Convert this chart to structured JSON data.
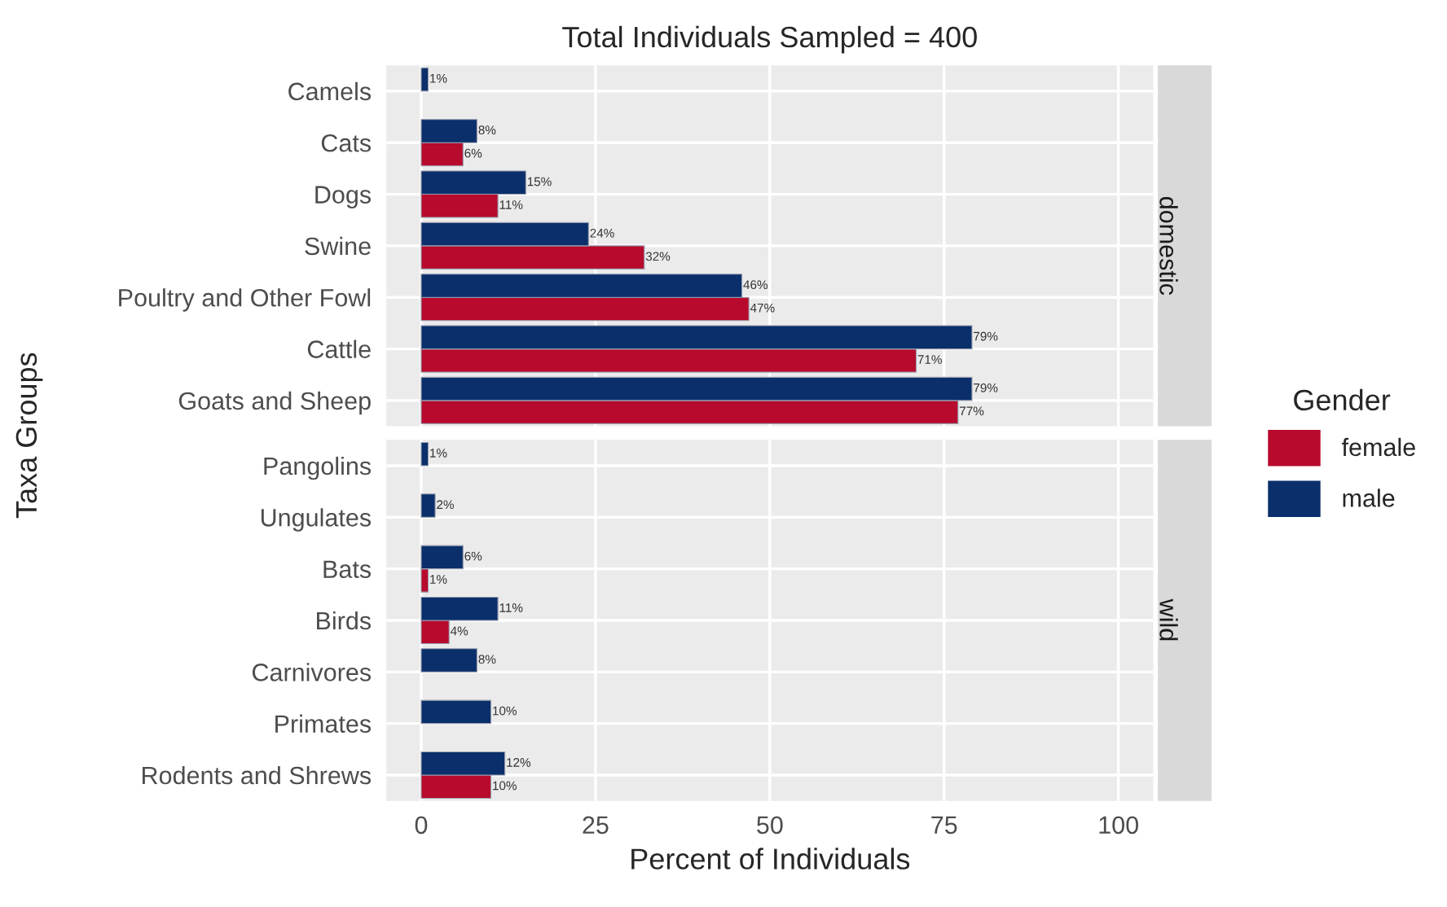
{
  "chart_data": [
    {
      "type": "bar",
      "orientation": "horizontal",
      "title": "Total Individuals Sampled = 400",
      "subtitle": "domestic",
      "ylabel": "Taxa Groups",
      "legend_title": "Gender",
      "legend": "right",
      "grid": true,
      "tick_labels": "y",
      "xlim": [
        -5,
        105
      ],
      "xticks": [
        0,
        25,
        50,
        75,
        100
      ],
      "categories": [
        "Camels",
        "Cats",
        "Dogs",
        "Swine",
        "Poultry and Other Fowl",
        "Cattle",
        "Goats and Sheep"
      ],
      "series": [
        {
          "name": "female",
          "color": "#b70a2c",
          "values": [
            null,
            6,
            11,
            32,
            47,
            71,
            77
          ],
          "value_labels": [
            null,
            "6%",
            "11%",
            "32%",
            "47%",
            "71%",
            "77%"
          ]
        },
        {
          "name": "male",
          "color": "#0a2f6b",
          "values": [
            1,
            8,
            15,
            24,
            46,
            79,
            79
          ],
          "value_labels": [
            "1%",
            "8%",
            "15%",
            "24%",
            "46%",
            "79%",
            "79%"
          ]
        }
      ]
    },
    {
      "type": "bar",
      "orientation": "horizontal",
      "subtitle": "wild",
      "xlabel": "Percent of Individuals",
      "grid": true,
      "xlim": [
        -5,
        105
      ],
      "xticks": [
        0,
        25,
        50,
        75,
        100
      ],
      "categories": [
        "Pangolins",
        "Ungulates",
        "Bats",
        "Birds",
        "Carnivores",
        "Primates",
        "Rodents and Shrews"
      ],
      "series": [
        {
          "color": "#b70a2c",
          "values": [
            null,
            null,
            1,
            4,
            null,
            null,
            10
          ],
          "value_labels": [
            null,
            null,
            "1%",
            "4%",
            null,
            null,
            "10%"
          ]
        },
        {
          "color": "#0a2f6b",
          "values": [
            1,
            2,
            6,
            11,
            8,
            10,
            12
          ],
          "value_labels": [
            "1%",
            "2%",
            "6%",
            "11%",
            "8%",
            "10%",
            "12%"
          ]
        }
      ]
    }
  ]
}
